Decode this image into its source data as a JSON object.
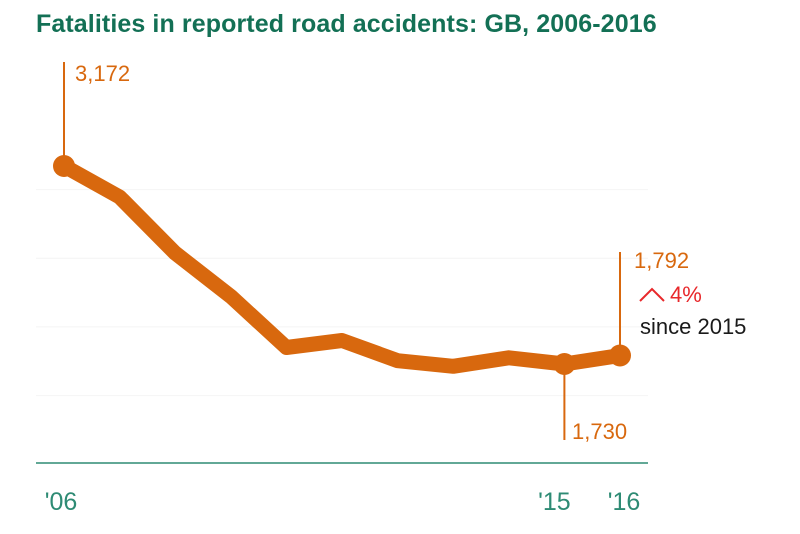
{
  "colors": {
    "title": "#137055",
    "line": "#D8680E",
    "axis": "#2E8B74",
    "increase": "#E8282B",
    "text": "#1A1A1A",
    "grid": "#F4F4F4"
  },
  "chart_data": {
    "type": "line",
    "title": "Fatalities in reported road accidents: GB, 2006-2016",
    "x": [
      2006,
      2007,
      2008,
      2009,
      2010,
      2011,
      2012,
      2013,
      2014,
      2015,
      2016
    ],
    "series": [
      {
        "values": [
          3172,
          2946,
          2538,
          2222,
          1850,
          1901,
          1754,
          1713,
          1775,
          1730,
          1792
        ]
      }
    ],
    "x_tick_labels": [
      {
        "x": 2006,
        "label": "'06"
      },
      {
        "x": 2015,
        "label": "'15"
      },
      {
        "x": 2016,
        "label": "'16"
      }
    ],
    "ylim": [
      1000,
      3700
    ],
    "grid": "faint horizontal",
    "legend": "none",
    "annotations": {
      "start": {
        "x": 2006,
        "label": "3,172"
      },
      "low": {
        "x": 2015,
        "label": "1,730"
      },
      "end": {
        "x": 2016,
        "label": "1,792"
      },
      "change": {
        "arrow": "up",
        "value": "4%",
        "text": "since 2015"
      }
    }
  }
}
